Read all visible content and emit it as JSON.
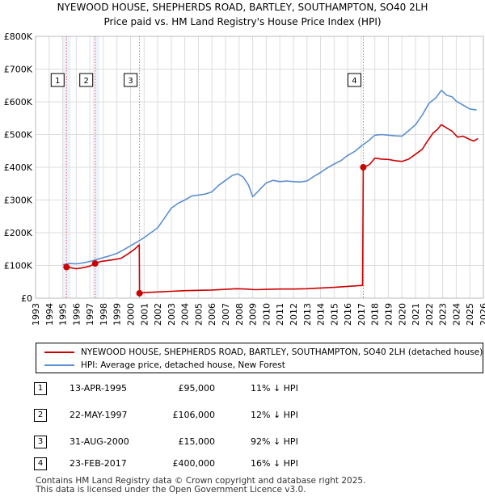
{
  "chart_data": {
    "type": "line",
    "title": "NYEWOOD HOUSE, SHEPHERDS ROAD, BARTLEY, SOUTHAMPTON, SO40 2LH",
    "subtitle": "Price paid vs. HM Land Registry's House Price Index (HPI)",
    "xlim": [
      1993,
      2026
    ],
    "ylim": [
      0,
      800000
    ],
    "x_ticks": [
      1993,
      1994,
      1995,
      1996,
      1997,
      1998,
      1999,
      2000,
      2001,
      2002,
      2003,
      2004,
      2005,
      2006,
      2007,
      2008,
      2009,
      2010,
      2011,
      2012,
      2013,
      2014,
      2015,
      2016,
      2017,
      2018,
      2019,
      2020,
      2021,
      2022,
      2023,
      2024,
      2025,
      2026
    ],
    "y_ticks": [
      0,
      100000,
      200000,
      300000,
      400000,
      500000,
      600000,
      700000,
      800000
    ],
    "y_tick_labels": [
      "£0",
      "£100K",
      "£200K",
      "£300K",
      "£400K",
      "£500K",
      "£600K",
      "£700K",
      "£800K"
    ],
    "grid": true,
    "series": [
      {
        "name": "NYEWOOD HOUSE, SHEPHERDS ROAD, BARTLEY, SOUTHAMPTON, SO40 2LH (detached house)",
        "color": "#cc0000",
        "x": [
          1995.28,
          1995.6,
          1996.0,
          1996.5,
          1997.0,
          1997.39,
          1997.8,
          1998.3,
          1998.8,
          1999.3,
          1999.8,
          2000.3,
          2000.64,
          2000.66,
          2001.0,
          2002.0,
          2003.0,
          2004.0,
          2005.0,
          2006.0,
          2007.0,
          2007.8,
          2008.5,
          2009.2,
          2010.0,
          2011.0,
          2012.0,
          2013.0,
          2014.0,
          2015.0,
          2016.0,
          2017.1,
          2017.15,
          2017.6,
          2018.0,
          2018.5,
          2019.0,
          2019.5,
          2020.0,
          2020.5,
          2021.0,
          2021.5,
          2021.8,
          2022.3,
          2022.6,
          2022.9,
          2023.3,
          2023.7,
          2024.1,
          2024.5,
          2025.0,
          2025.3,
          2025.6
        ],
        "y": [
          95000,
          93000,
          90000,
          93000,
          98000,
          106000,
          112000,
          115000,
          118000,
          122000,
          135000,
          150000,
          163000,
          15000,
          17000,
          19000,
          21000,
          23000,
          24000,
          25000,
          27000,
          29000,
          28000,
          26000,
          27000,
          28000,
          28000,
          29000,
          31000,
          33000,
          36000,
          39000,
          400000,
          408000,
          428000,
          425000,
          424000,
          420000,
          418000,
          425000,
          440000,
          455000,
          475000,
          505000,
          515000,
          530000,
          520000,
          510000,
          492000,
          495000,
          485000,
          480000,
          488000
        ]
      },
      {
        "name": "HPI: Average price, detached house, New Forest",
        "color": "#5b8fd0",
        "x": [
          1995.0,
          1995.5,
          1996.0,
          1996.5,
          1997.0,
          1997.5,
          1998.0,
          1998.5,
          1999.0,
          1999.5,
          2000.0,
          2000.5,
          2001.0,
          2001.5,
          2002.0,
          2002.5,
          2003.0,
          2003.5,
          2004.0,
          2004.5,
          2005.0,
          2005.5,
          2006.0,
          2006.5,
          2007.0,
          2007.5,
          2007.9,
          2008.3,
          2008.7,
          2009.0,
          2009.3,
          2009.7,
          2010.0,
          2010.5,
          2011.0,
          2011.5,
          2012.0,
          2012.5,
          2013.0,
          2013.5,
          2014.0,
          2014.5,
          2015.0,
          2015.5,
          2016.0,
          2016.5,
          2017.0,
          2017.5,
          2018.0,
          2018.5,
          2019.0,
          2019.5,
          2020.0,
          2020.5,
          2021.0,
          2021.5,
          2022.0,
          2022.5,
          2022.9,
          2023.3,
          2023.7,
          2024.0,
          2024.5,
          2025.0,
          2025.5
        ],
        "y": [
          102000,
          106000,
          105000,
          108000,
          112000,
          118000,
          124000,
          130000,
          137000,
          148000,
          160000,
          172000,
          185000,
          200000,
          215000,
          245000,
          275000,
          290000,
          300000,
          312000,
          315000,
          318000,
          325000,
          345000,
          360000,
          375000,
          380000,
          370000,
          345000,
          310000,
          322000,
          340000,
          352000,
          360000,
          356000,
          358000,
          356000,
          355000,
          358000,
          372000,
          384000,
          398000,
          410000,
          420000,
          436000,
          448000,
          465000,
          480000,
          498000,
          500000,
          498000,
          496000,
          495000,
          512000,
          530000,
          560000,
          596000,
          612000,
          635000,
          620000,
          615000,
          602000,
          590000,
          578000,
          575000
        ]
      }
    ],
    "sales": [
      {
        "num": "1",
        "date": "13-APR-1995",
        "price": "£95,000",
        "hpi": "11% ↓ HPI",
        "x": 1995.28,
        "y": 95000
      },
      {
        "num": "2",
        "date": "22-MAY-1997",
        "price": "£106,000",
        "hpi": "12% ↓ HPI",
        "x": 1997.39,
        "y": 106000
      },
      {
        "num": "3",
        "date": "31-AUG-2000",
        "price": "£15,000",
        "hpi": "92% ↓ HPI",
        "x": 2000.66,
        "y": 15000
      },
      {
        "num": "4",
        "date": "23-FEB-2017",
        "price": "£400,000",
        "hpi": "16% ↓ HPI",
        "x": 2017.15,
        "y": 400000
      }
    ]
  },
  "legend": {
    "property_label": "NYEWOOD HOUSE, SHEPHERDS ROAD, BARTLEY, SOUTHAMPTON, SO40 2LH (detached house)",
    "hpi_label": "HPI: Average price, detached house, New Forest",
    "property_color": "#cc0000",
    "hpi_color": "#5b8fd0"
  },
  "footer": {
    "line1": "Contains HM Land Registry data © Crown copyright and database right 2025.",
    "line2": "This data is licensed under the Open Government Licence v3.0."
  }
}
